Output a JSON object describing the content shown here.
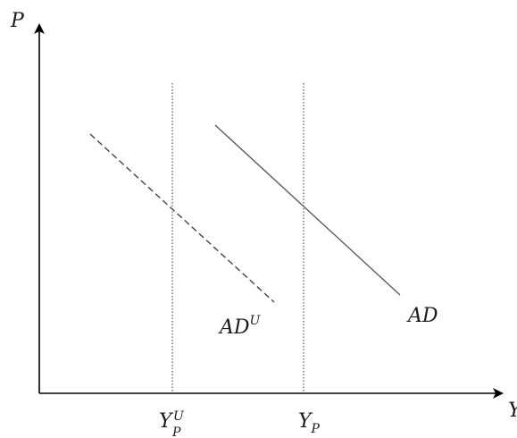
{
  "axes": {
    "y_label": "P",
    "x_label": "Y"
  },
  "curves": {
    "ad": {
      "label": "AD",
      "style": "solid"
    },
    "ad_u": {
      "label": "AD",
      "superscript": "U",
      "style": "dashed"
    }
  },
  "reference_lines": {
    "yp": {
      "label": "Y",
      "subscript": "P"
    },
    "yp_u": {
      "label": "Y",
      "subscript": "P",
      "superscript": "U"
    }
  },
  "colors": {
    "axis": "#000000",
    "curve": "#444444",
    "reference": "#333333"
  }
}
